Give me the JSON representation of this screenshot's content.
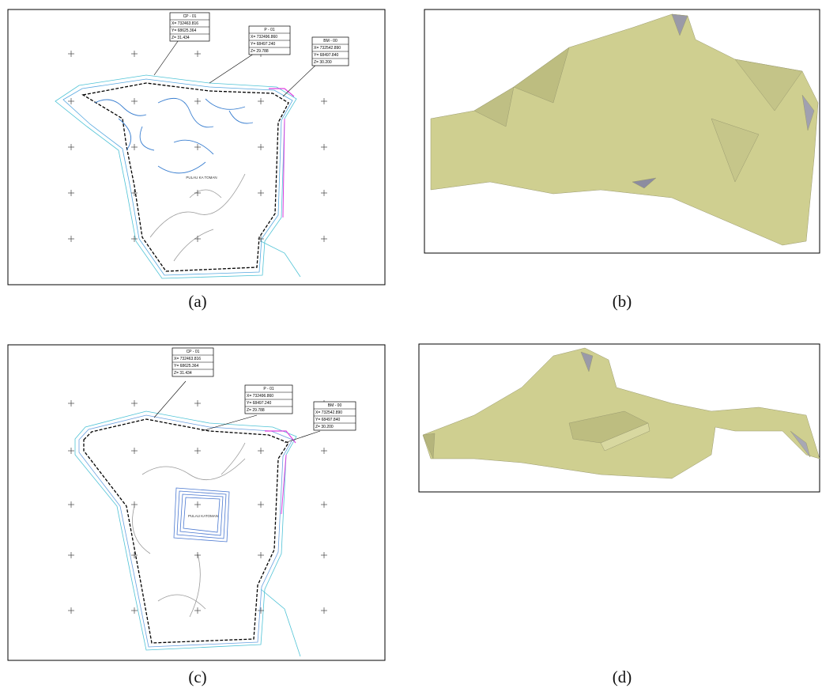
{
  "panels": [
    {
      "label": "(a)",
      "map_label": "PULAU KA TOMAN",
      "callouts": [
        {
          "title": "CP - 01",
          "lines": [
            "X= 732463.816",
            "Y= 68625.364",
            "Z= 31.434"
          ]
        },
        {
          "title": "P - 01",
          "lines": [
            "X= 732496.860",
            "Y= 68497.240",
            "Z= 29.788"
          ]
        },
        {
          "title": "BM - 00",
          "lines": [
            "X= 732542.890",
            "Y= 68497.840",
            "Z= 30.200"
          ]
        }
      ]
    },
    {
      "label": "(b)"
    },
    {
      "label": "(c)",
      "map_label": "PULAU KATOMAN",
      "callouts": [
        {
          "title": "CP - 01",
          "lines": [
            "X= 732463.816",
            "Y= 68625.364",
            "Z= 31.434"
          ]
        },
        {
          "title": "P - 01",
          "lines": [
            "X= 732496.860",
            "Y= 68497.240",
            "Z= 29.788"
          ]
        },
        {
          "title": "BM - 00",
          "lines": [
            "X= 732542.890",
            "Y= 68497.840",
            "Z= 30.200"
          ]
        }
      ]
    },
    {
      "label": "(d)"
    }
  ]
}
